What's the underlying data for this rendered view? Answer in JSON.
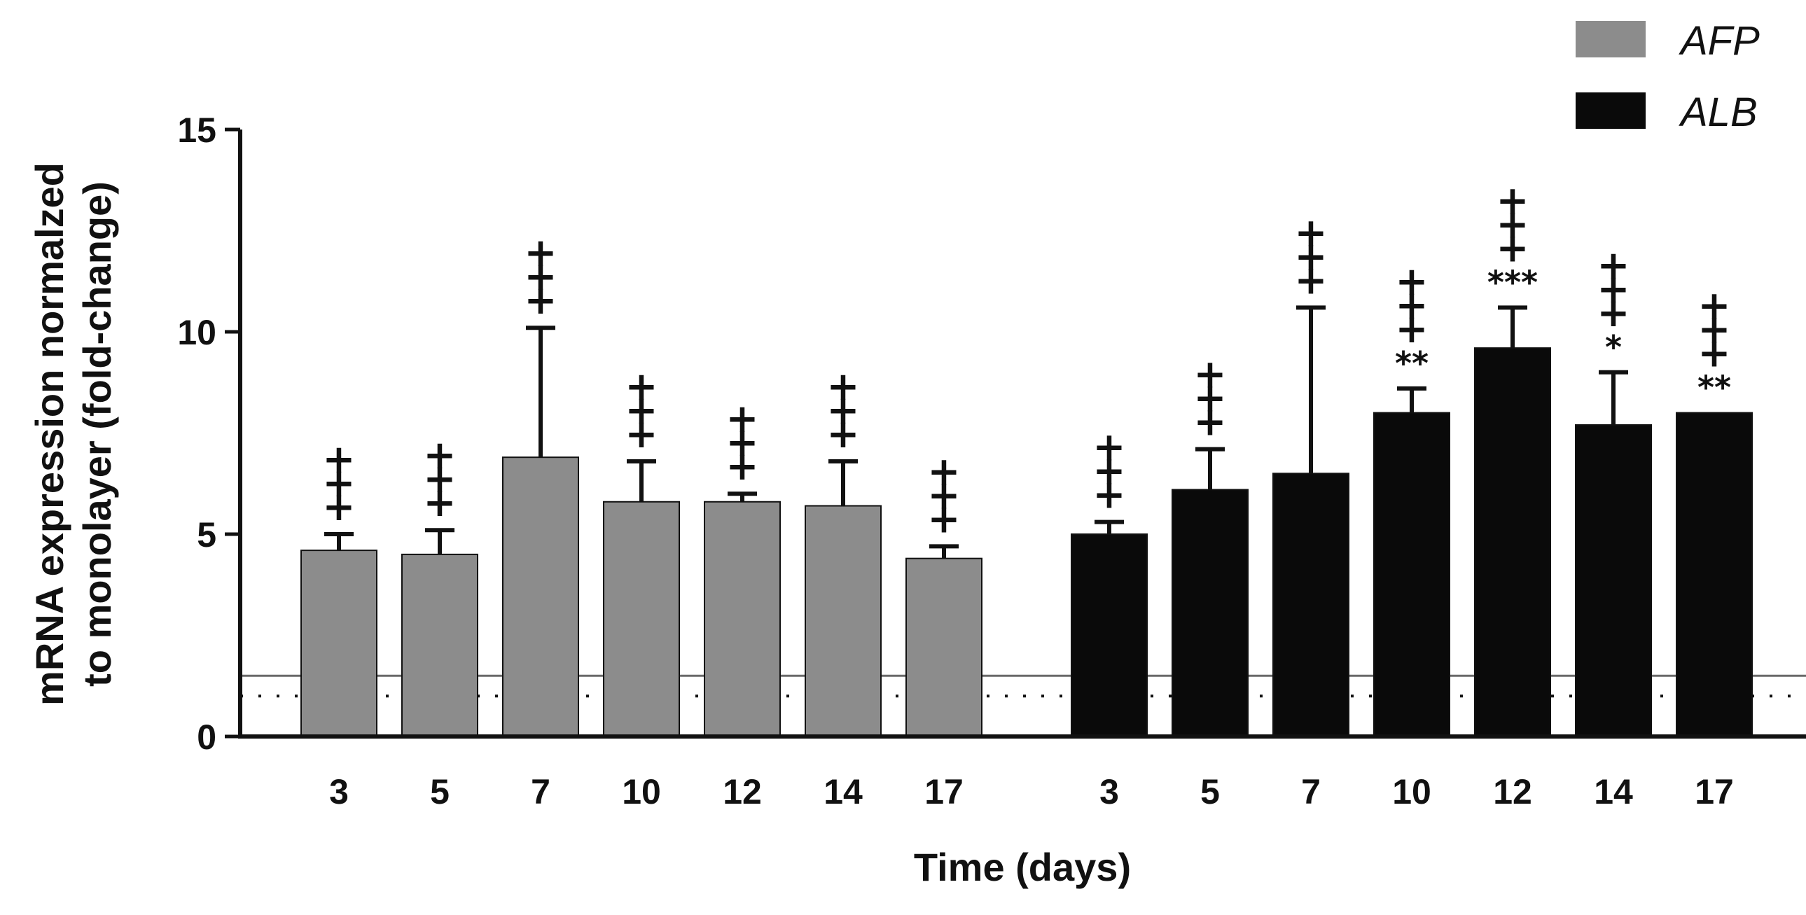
{
  "chart_data": {
    "type": "bar",
    "xlabel": "Time (days)",
    "ylabel": "mRNA expression normalzed to monolayer (fold-change)",
    "ylabel_lines": [
      "mRNA expression normalzed",
      "to monolayer (fold-change)"
    ],
    "ylim": [
      0,
      15
    ],
    "yticks": [
      0,
      5,
      10,
      15
    ],
    "categories": [
      "3",
      "5",
      "7",
      "10",
      "12",
      "14",
      "17"
    ],
    "legend_position": "top-right",
    "reference_lines": [
      {
        "value": 1.5,
        "style": "solid"
      },
      {
        "value": 1.0,
        "style": "dotted"
      }
    ],
    "series": [
      {
        "name": "AFP",
        "color": "#8c8c8c",
        "values": [
          4.6,
          4.5,
          6.9,
          5.8,
          5.8,
          5.7,
          4.4
        ],
        "errors": [
          0.4,
          0.6,
          3.2,
          1.0,
          0.2,
          1.1,
          0.3
        ],
        "annotations": [
          [
            "+",
            "+",
            "+"
          ],
          [
            "+",
            "+",
            "+"
          ],
          [
            "+",
            "+",
            "+"
          ],
          [
            "+",
            "+",
            "+"
          ],
          [
            "+",
            "+",
            "+"
          ],
          [
            "+",
            "+",
            "+"
          ],
          [
            "+",
            "+",
            "+"
          ]
        ]
      },
      {
        "name": "ALB",
        "color": "#0a0a0a",
        "values": [
          5.0,
          6.1,
          6.5,
          8.0,
          9.6,
          7.7,
          8.0
        ],
        "errors": [
          0.3,
          1.0,
          4.1,
          0.6,
          1.0,
          1.3,
          0.0
        ],
        "annotations": [
          [
            "+",
            "+",
            "+"
          ],
          [
            "+",
            "+",
            "+"
          ],
          [
            "+",
            "+",
            "+"
          ],
          [
            "**",
            "+",
            "+",
            "+"
          ],
          [
            "***",
            "+",
            "+",
            "+"
          ],
          [
            "*",
            "+",
            "+",
            "+"
          ],
          [
            "**",
            "+",
            "+",
            "+"
          ]
        ]
      }
    ]
  }
}
